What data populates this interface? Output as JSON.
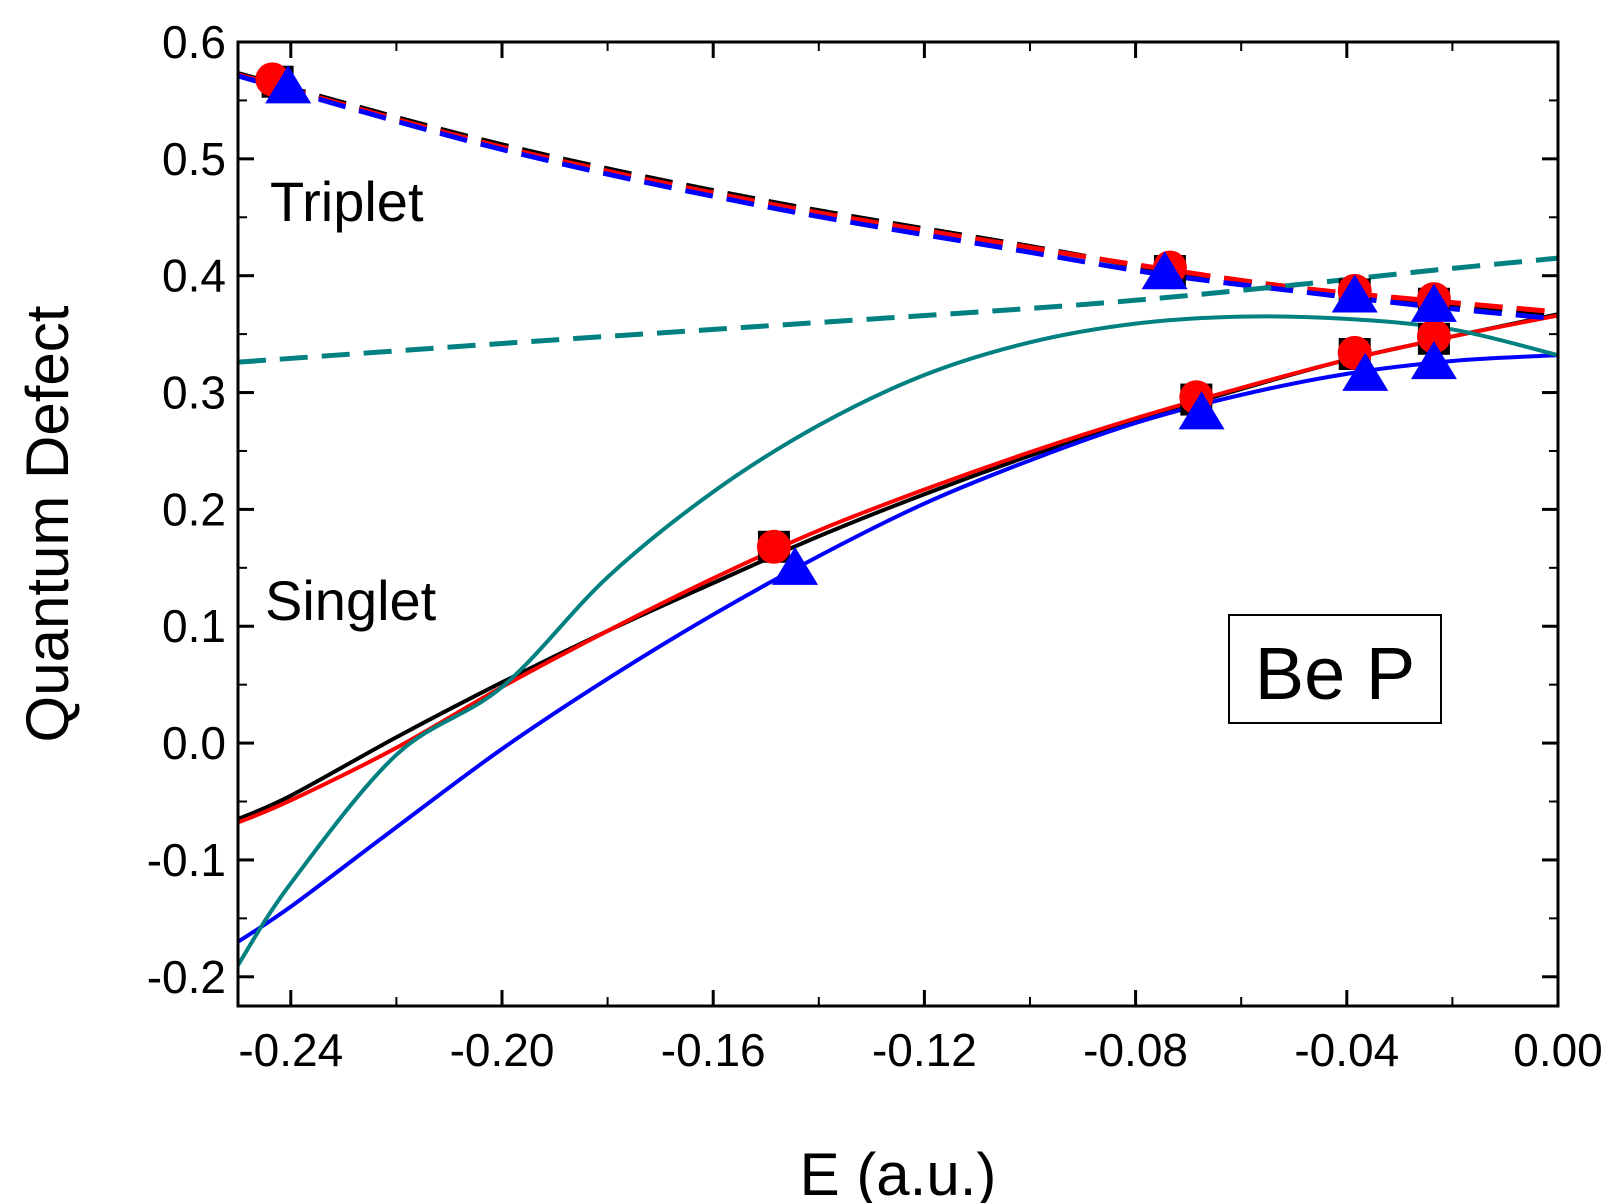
{
  "chart_data": {
    "type": "line",
    "title": "",
    "xlabel": "E (a.u.)",
    "ylabel": "Quantum Defect",
    "xlim": [
      -0.25,
      0.0
    ],
    "ylim": [
      -0.225,
      0.6
    ],
    "x_ticks": [
      -0.24,
      -0.2,
      -0.16,
      -0.12,
      -0.08,
      -0.04,
      0.0
    ],
    "x_tick_labels": [
      "-0.24",
      "-0.20",
      "-0.16",
      "-0.12",
      "-0.08",
      "-0.04",
      "0.00"
    ],
    "y_ticks": [
      -0.2,
      -0.1,
      0.0,
      0.1,
      0.2,
      0.3,
      0.4,
      0.5,
      0.6
    ],
    "y_tick_labels": [
      "-0.2",
      "-0.1",
      "0.0",
      "0.1",
      "0.2",
      "0.3",
      "0.4",
      "0.5",
      "0.6"
    ],
    "annotations": [
      {
        "text": "Triplet",
        "x": -0.232,
        "y": 0.46
      },
      {
        "text": "Singlet",
        "x": -0.232,
        "y": 0.115
      }
    ],
    "legend_box": {
      "text": "Be P",
      "placement": "lower-right"
    },
    "colors": {
      "black": "#000000",
      "red": "#ff0000",
      "blue": "#0000ff",
      "teal": "#008080"
    },
    "series": [
      {
        "name": "singlet-black-line",
        "color": "#000000",
        "style": "solid",
        "x": [
          -0.25,
          -0.24,
          -0.22,
          -0.2,
          -0.18,
          -0.16,
          -0.14,
          -0.12,
          -0.1,
          -0.08,
          -0.06,
          -0.04,
          -0.02,
          0.0
        ],
        "y": [
          -0.065,
          -0.045,
          0.005,
          0.052,
          0.096,
          0.137,
          0.177,
          0.213,
          0.246,
          0.276,
          0.303,
          0.328,
          0.348,
          0.367
        ]
      },
      {
        "name": "singlet-red-line",
        "color": "#ff0000",
        "style": "solid",
        "x": [
          -0.25,
          -0.24,
          -0.22,
          -0.2,
          -0.18,
          -0.16,
          -0.14,
          -0.12,
          -0.1,
          -0.08,
          -0.06,
          -0.04,
          -0.02,
          0.0
        ],
        "y": [
          -0.068,
          -0.049,
          -0.004,
          0.048,
          0.096,
          0.141,
          0.182,
          0.217,
          0.249,
          0.278,
          0.304,
          0.328,
          0.348,
          0.366
        ]
      },
      {
        "name": "singlet-blue-line",
        "color": "#0000ff",
        "style": "solid",
        "x": [
          -0.25,
          -0.24,
          -0.22,
          -0.2,
          -0.18,
          -0.16,
          -0.14,
          -0.12,
          -0.1,
          -0.08,
          -0.06,
          -0.04,
          -0.02,
          0.0
        ],
        "y": [
          -0.17,
          -0.14,
          -0.072,
          -0.005,
          0.055,
          0.11,
          0.16,
          0.205,
          0.242,
          0.274,
          0.298,
          0.316,
          0.327,
          0.332
        ]
      },
      {
        "name": "singlet-teal-line",
        "color": "#008080",
        "style": "solid",
        "x": [
          -0.25,
          -0.24,
          -0.22,
          -0.2,
          -0.18,
          -0.16,
          -0.14,
          -0.12,
          -0.1,
          -0.08,
          -0.06,
          -0.04,
          -0.02,
          0.0
        ],
        "y": [
          -0.19,
          -0.12,
          -0.01,
          0.048,
          0.142,
          0.215,
          0.272,
          0.315,
          0.343,
          0.359,
          0.365,
          0.363,
          0.354,
          0.332
        ]
      },
      {
        "name": "triplet-black-dash",
        "color": "#000000",
        "style": "dashed",
        "x": [
          -0.25,
          -0.2,
          -0.15,
          -0.1,
          -0.075,
          -0.05,
          -0.025,
          0.0
        ],
        "y": [
          0.573,
          0.512,
          0.464,
          0.425,
          0.405,
          0.39,
          0.377,
          0.367
        ]
      },
      {
        "name": "triplet-red-dash",
        "color": "#ff0000",
        "style": "dashed",
        "x": [
          -0.25,
          -0.2,
          -0.15,
          -0.1,
          -0.075,
          -0.05,
          -0.025,
          0.0
        ],
        "y": [
          0.572,
          0.51,
          0.462,
          0.424,
          0.406,
          0.39,
          0.379,
          0.369
        ]
      },
      {
        "name": "triplet-blue-dash",
        "color": "#0000ff",
        "style": "dashed",
        "x": [
          -0.25,
          -0.2,
          -0.15,
          -0.1,
          -0.075,
          -0.05,
          -0.025,
          0.0
        ],
        "y": [
          0.571,
          0.508,
          0.459,
          0.42,
          0.401,
          0.387,
          0.374,
          0.363
        ]
      },
      {
        "name": "triplet-teal-dash",
        "color": "#008080",
        "style": "dashed",
        "x": [
          -0.25,
          -0.2,
          -0.15,
          -0.1,
          -0.075,
          -0.05,
          -0.025,
          0.0
        ],
        "y": [
          0.326,
          0.342,
          0.357,
          0.372,
          0.381,
          0.392,
          0.404,
          0.415
        ]
      }
    ],
    "markers": [
      {
        "name": "black-square",
        "color": "#000000",
        "shape": "square",
        "points": [
          [
            -0.2425,
            0.566
          ],
          [
            -0.0735,
            0.404
          ],
          [
            -0.0385,
            0.384
          ],
          [
            -0.0235,
            0.376
          ],
          [
            -0.1485,
            0.168
          ],
          [
            -0.0685,
            0.294
          ],
          [
            -0.0385,
            0.333
          ],
          [
            -0.0235,
            0.346
          ]
        ]
      },
      {
        "name": "red-circle",
        "color": "#ff0000",
        "shape": "circle",
        "points": [
          [
            -0.2435,
            0.568
          ],
          [
            -0.0735,
            0.407
          ],
          [
            -0.0385,
            0.387
          ],
          [
            -0.0235,
            0.38
          ],
          [
            -0.1485,
            0.168
          ],
          [
            -0.0685,
            0.296
          ],
          [
            -0.0385,
            0.334
          ],
          [
            -0.0235,
            0.348
          ]
        ]
      },
      {
        "name": "blue-triangle",
        "color": "#0000ff",
        "shape": "triangle",
        "points": [
          [
            -0.2405,
            0.562
          ],
          [
            -0.0745,
            0.403
          ],
          [
            -0.0385,
            0.383
          ],
          [
            -0.0235,
            0.375
          ],
          [
            -0.1445,
            0.15
          ],
          [
            -0.0675,
            0.283
          ],
          [
            -0.0365,
            0.316
          ],
          [
            -0.0235,
            0.326
          ]
        ]
      }
    ]
  }
}
